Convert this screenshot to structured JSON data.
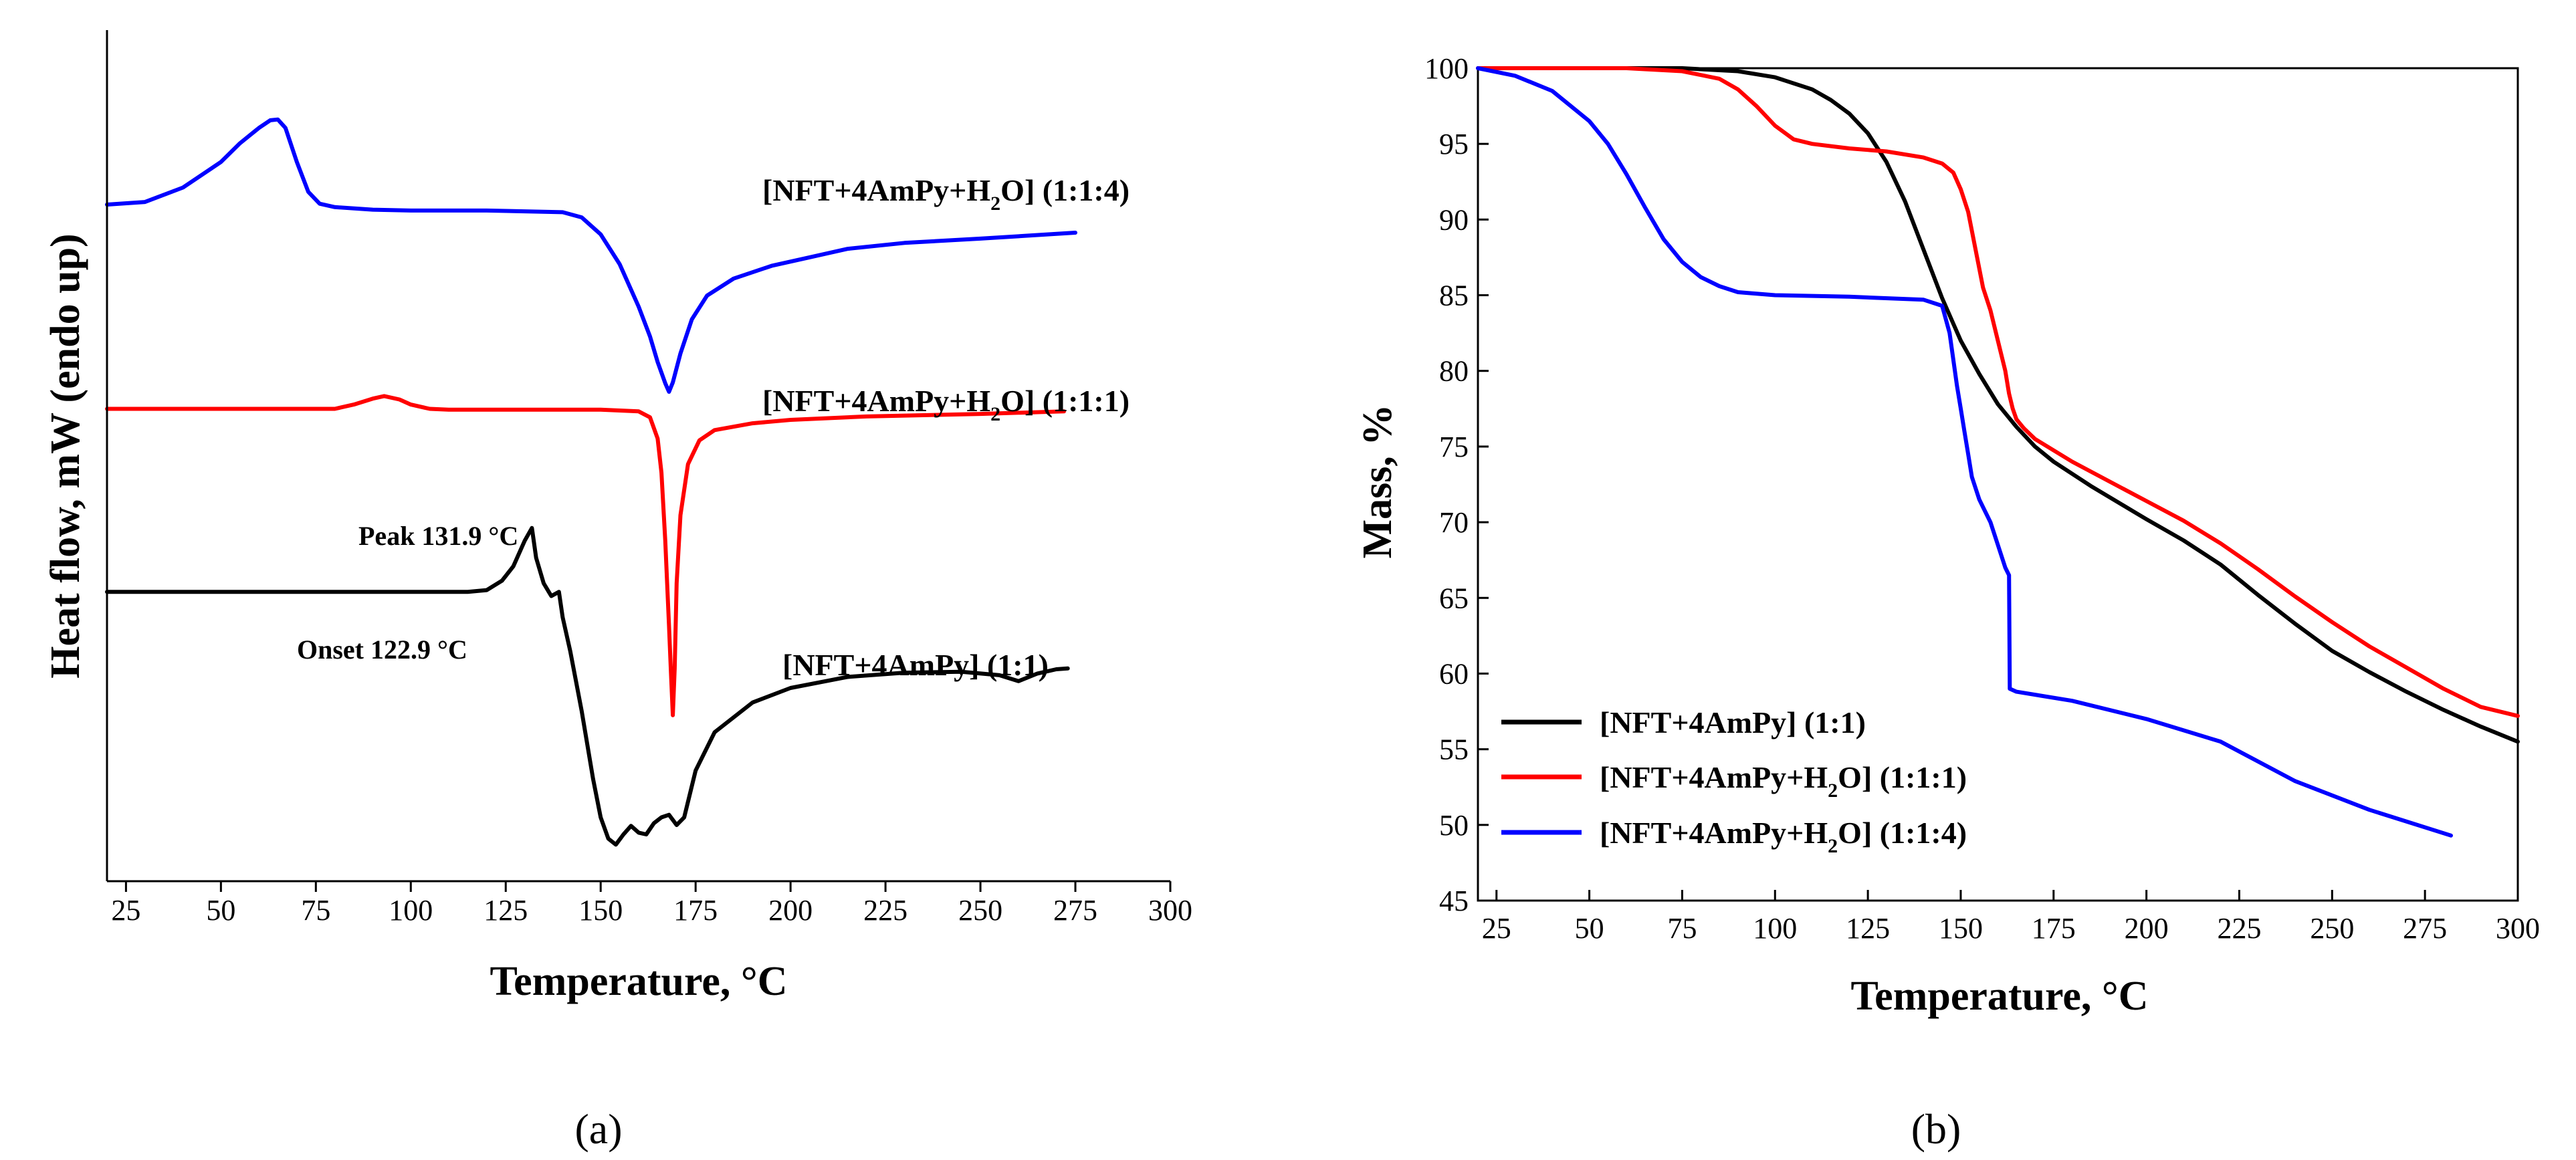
{
  "chart_data": [
    {
      "id": "a",
      "type": "line",
      "panel_label": "(a)",
      "xlabel": "Temperature, °C",
      "ylabel": "Heat flow, mW (endo up)",
      "xlim": [
        20,
        300
      ],
      "ylim": [
        0,
        100
      ],
      "x_ticks": [
        25,
        50,
        75,
        100,
        125,
        150,
        175,
        200,
        225,
        250,
        275,
        300
      ],
      "y_ticks_shown": false,
      "series": [
        {
          "name": "[NFT+4AmPy+H2O] (1:1:4)",
          "label_parts": [
            "[NFT+4AmPy+H",
            "2",
            "O] (1:1:4)"
          ],
          "color": "#0000ff",
          "x": [
            20,
            30,
            40,
            50,
            55,
            60,
            63,
            65,
            67,
            70,
            73,
            76,
            80,
            90,
            100,
            120,
            140,
            145,
            150,
            155,
            160,
            163,
            165,
            167,
            168,
            169,
            171,
            174,
            178,
            185,
            195,
            205,
            215,
            230,
            250,
            275
          ],
          "y": [
            79.5,
            79.8,
            81.5,
            84.5,
            86.7,
            88.5,
            89.4,
            89.5,
            88.5,
            84.5,
            81.0,
            79.6,
            79.2,
            78.9,
            78.8,
            78.8,
            78.6,
            78.0,
            76.0,
            72.5,
            67.5,
            64.0,
            61.0,
            58.5,
            57.5,
            58.6,
            62.0,
            66.0,
            68.8,
            70.8,
            72.3,
            73.3,
            74.3,
            75.0,
            75.5,
            76.2
          ]
        },
        {
          "name": "[NFT+4AmPy+H2O] (1:1:1)",
          "label_parts": [
            "[NFT+4AmPy+H",
            "2",
            "O] (1:1:1)"
          ],
          "color": "#ff0000",
          "x": [
            20,
            40,
            60,
            80,
            85,
            90,
            93,
            97,
            100,
            105,
            110,
            130,
            150,
            160,
            163,
            165,
            166,
            167,
            168,
            168.5,
            169,
            169.5,
            170,
            171,
            173,
            176,
            180,
            190,
            200,
            220,
            250,
            272
          ],
          "y": [
            55.5,
            55.5,
            55.5,
            55.5,
            56.0,
            56.7,
            57.0,
            56.6,
            56.0,
            55.5,
            55.4,
            55.4,
            55.4,
            55.2,
            54.5,
            52.0,
            48.0,
            40.0,
            30.0,
            24.5,
            19.5,
            25.0,
            35.0,
            43.0,
            49.0,
            51.8,
            53.0,
            53.8,
            54.2,
            54.6,
            54.9,
            55.2
          ]
        },
        {
          "name": "[NFT+4AmPy] (1:1)",
          "label_parts": [
            "[NFT+4AmPy] (1:1)"
          ],
          "color": "#000000",
          "x": [
            20,
            60,
            100,
            115,
            120,
            124,
            127,
            130,
            131.9,
            133,
            135,
            137,
            139,
            140,
            142,
            145,
            148,
            150,
            152,
            154,
            156,
            158,
            160,
            162,
            164,
            166,
            168,
            170,
            172,
            175,
            180,
            190,
            200,
            215,
            230,
            245,
            255,
            260,
            265,
            270,
            273
          ],
          "y": [
            34.0,
            34.0,
            34.0,
            34.0,
            34.2,
            35.3,
            37.0,
            40.0,
            41.5,
            38.0,
            35.0,
            33.5,
            34.0,
            31.0,
            27.0,
            20.0,
            12.0,
            7.5,
            5.0,
            4.3,
            5.5,
            6.5,
            5.7,
            5.5,
            6.8,
            7.5,
            7.8,
            6.6,
            7.5,
            13.0,
            17.5,
            21.0,
            22.7,
            24.0,
            24.5,
            24.6,
            24.2,
            23.5,
            24.4,
            24.9,
            25.0
          ]
        }
      ],
      "annotations": [
        {
          "text": "Peak 131.9 °C",
          "x": 131.9
        },
        {
          "text": "Onset 122.9 °C",
          "x": 122.9
        }
      ]
    },
    {
      "id": "b",
      "type": "line",
      "panel_label": "(b)",
      "xlabel": "Temperature, °C",
      "ylabel": "Mass, %",
      "xlim": [
        20,
        300
      ],
      "ylim": [
        45,
        100
      ],
      "x_ticks": [
        25,
        50,
        75,
        100,
        125,
        150,
        175,
        200,
        225,
        250,
        275,
        300
      ],
      "y_ticks": [
        45,
        50,
        55,
        60,
        65,
        70,
        75,
        80,
        85,
        90,
        95,
        100
      ],
      "legend_position": "bottom-left",
      "series": [
        {
          "name": "[NFT+4AmPy] (1:1)",
          "label_parts": [
            "[NFT+4AmPy] (1:1)"
          ],
          "color": "#000000",
          "x": [
            20,
            50,
            75,
            90,
            100,
            110,
            115,
            120,
            125,
            130,
            135,
            140,
            145,
            150,
            155,
            160,
            165,
            170,
            175,
            185,
            200,
            210,
            220,
            230,
            240,
            250,
            260,
            270,
            280,
            290,
            300
          ],
          "y": [
            100,
            100,
            100,
            99.8,
            99.4,
            98.6,
            97.9,
            97.0,
            95.7,
            93.8,
            91.2,
            88.0,
            84.8,
            82.0,
            79.8,
            77.8,
            76.3,
            75.0,
            74.0,
            72.4,
            70.2,
            68.8,
            67.2,
            65.2,
            63.3,
            61.5,
            60.1,
            58.8,
            57.6,
            56.5,
            55.5
          ]
        },
        {
          "name": "[NFT+4AmPy+H2O] (1:1:1)",
          "label_parts": [
            "[NFT+4AmPy+H",
            "2",
            "O] (1:1:1)"
          ],
          "color": "#ff0000",
          "x": [
            20,
            60,
            75,
            85,
            90,
            95,
            100,
            105,
            110,
            120,
            130,
            140,
            145,
            148,
            150,
            152,
            154,
            156,
            158,
            160,
            162,
            163,
            164,
            165,
            167,
            170,
            180,
            190,
            200,
            210,
            220,
            230,
            240,
            250,
            260,
            270,
            280,
            290,
            300
          ],
          "y": [
            100,
            100,
            99.8,
            99.3,
            98.6,
            97.5,
            96.2,
            95.3,
            95.0,
            94.7,
            94.5,
            94.1,
            93.7,
            93.1,
            92.0,
            90.5,
            88.0,
            85.5,
            84.0,
            82.0,
            80.0,
            78.5,
            77.5,
            76.8,
            76.2,
            75.5,
            74.0,
            72.7,
            71.4,
            70.1,
            68.6,
            66.9,
            65.1,
            63.4,
            61.8,
            60.4,
            59.0,
            57.8,
            57.2
          ]
        },
        {
          "name": "[NFT+4AmPy+H2O] (1:1:4)",
          "label_parts": [
            "[NFT+4AmPy+H",
            "2",
            "O] (1:1:4)"
          ],
          "color": "#0000ff",
          "x": [
            20,
            30,
            40,
            50,
            55,
            60,
            65,
            70,
            75,
            80,
            85,
            90,
            100,
            120,
            140,
            145,
            147,
            149,
            150,
            151,
            152,
            153,
            155,
            158,
            160,
            162,
            163,
            163.2,
            165,
            180,
            200,
            220,
            240,
            260,
            282
          ],
          "y": [
            100,
            99.5,
            98.5,
            96.5,
            95.0,
            93.0,
            90.8,
            88.7,
            87.2,
            86.2,
            85.6,
            85.2,
            85.0,
            84.9,
            84.7,
            84.3,
            82.5,
            79.0,
            77.5,
            76.0,
            74.5,
            73.0,
            71.5,
            70.0,
            68.5,
            67.0,
            66.5,
            59.0,
            58.8,
            58.2,
            57.0,
            55.5,
            52.9,
            51.0,
            49.3
          ]
        }
      ]
    }
  ]
}
